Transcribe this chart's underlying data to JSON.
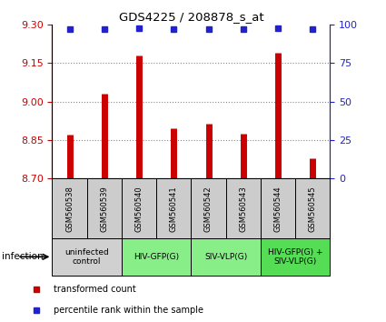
{
  "title": "GDS4225 / 208878_s_at",
  "samples": [
    "GSM560538",
    "GSM560539",
    "GSM560540",
    "GSM560541",
    "GSM560542",
    "GSM560543",
    "GSM560544",
    "GSM560545"
  ],
  "bar_values": [
    8.87,
    9.03,
    9.18,
    8.895,
    8.915,
    8.875,
    9.19,
    8.78
  ],
  "percentile_values": [
    97,
    97,
    97.5,
    97,
    97,
    97,
    97.5,
    97
  ],
  "ylim": [
    8.7,
    9.3
  ],
  "yticks": [
    8.7,
    8.85,
    9.0,
    9.15,
    9.3
  ],
  "right_ylim": [
    0,
    100
  ],
  "right_yticks": [
    0,
    25,
    50,
    75,
    100
  ],
  "bar_color": "#cc0000",
  "dot_color": "#2222cc",
  "groups": [
    {
      "label": "uninfected\ncontrol",
      "start": 0,
      "end": 2,
      "color": "#d0d0d0"
    },
    {
      "label": "HIV-GFP(G)",
      "start": 2,
      "end": 4,
      "color": "#88ee88"
    },
    {
      "label": "SIV-VLP(G)",
      "start": 4,
      "end": 6,
      "color": "#88ee88"
    },
    {
      "label": "HIV-GFP(G) +\nSIV-VLP(G)",
      "start": 6,
      "end": 8,
      "color": "#55dd55"
    }
  ],
  "bar_color_left": "#cc0000",
  "tick_color_left": "#cc0000",
  "tick_color_right": "#2222cc",
  "grid_color": "#888888",
  "sample_bg_color": "#cccccc",
  "infection_label": "infection",
  "legend_items": [
    {
      "color": "#cc0000",
      "label": "transformed count"
    },
    {
      "color": "#2222cc",
      "label": "percentile rank within the sample"
    }
  ]
}
